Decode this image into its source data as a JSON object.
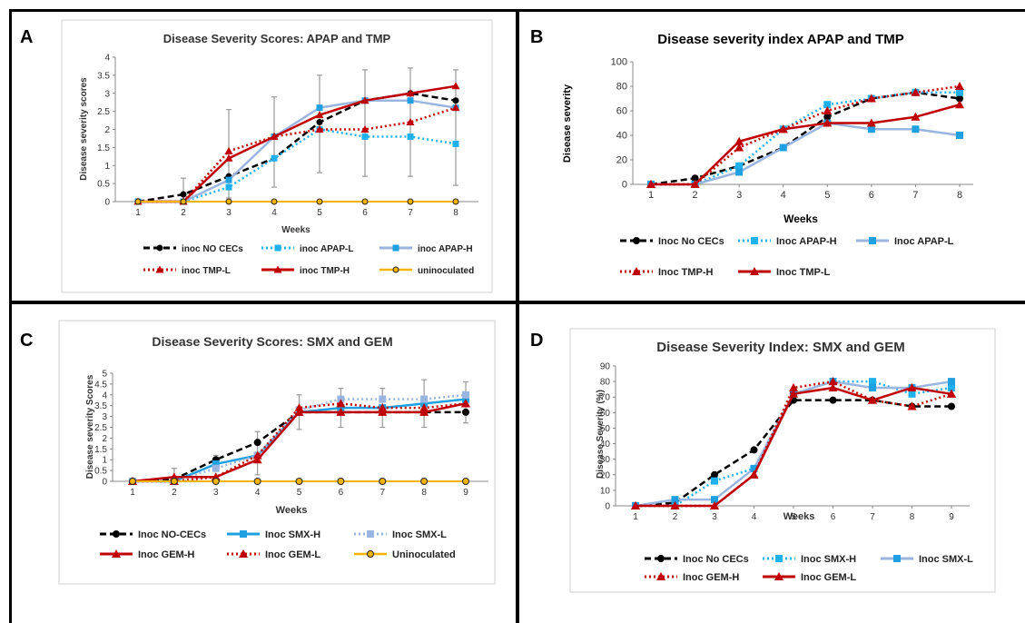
{
  "panel_labels": [
    "A",
    "B",
    "C",
    "D"
  ],
  "colors": {
    "black": "#000000",
    "blue_light_dotted": "#1fb1ee",
    "blue_pale": "#9ab6e0",
    "blue_solid": "#1fa0e0",
    "red_dark": "#c00000",
    "red_dotted": "#c00000",
    "yellow": "#f4b400"
  },
  "chart_data": [
    {
      "type": "line",
      "panel": "A",
      "title": "Disease Severity Scores: APAP and TMP",
      "xlabel": "Weeks",
      "ylabel": "Disease severity  scores",
      "x": [
        1,
        2,
        3,
        4,
        5,
        6,
        7,
        8
      ],
      "ylim": [
        0,
        4
      ],
      "yticks": [
        "0",
        "0.5",
        "1",
        "1.5",
        "2",
        "2.5",
        "3",
        "3.5",
        "4"
      ],
      "xticks": [
        "1",
        "2",
        "3",
        "4",
        "5",
        "6",
        "7",
        "8"
      ],
      "series": [
        {
          "name": "inoc NO CECs",
          "style": "black-dashed-circle",
          "values": [
            0,
            0.2,
            0.7,
            1.2,
            2.2,
            2.8,
            3.0,
            2.8
          ]
        },
        {
          "name": "inoc APAP-L",
          "style": "cyan-dotted-square",
          "values": [
            0,
            0,
            0.4,
            1.2,
            2.0,
            1.8,
            1.8,
            1.6
          ]
        },
        {
          "name": "inoc APAP-H",
          "style": "pale-solid-square",
          "values": [
            0,
            0,
            0.6,
            1.8,
            2.6,
            2.8,
            2.8,
            2.6
          ]
        },
        {
          "name": "inoc TMP-L",
          "style": "red-dotted-triangle",
          "values": [
            0,
            0,
            1.4,
            1.8,
            2.0,
            2.0,
            2.2,
            2.6
          ]
        },
        {
          "name": "inoc TMP-H",
          "style": "red-solid-triangle",
          "values": [
            0,
            0,
            1.2,
            1.8,
            2.4,
            2.8,
            3.0,
            3.2
          ]
        },
        {
          "name": "uninoculated",
          "style": "yellow-solid-circle",
          "values": [
            0,
            0,
            0,
            0,
            0,
            0,
            0,
            0
          ]
        }
      ],
      "error_bars": [
        {
          "x": 2,
          "low": 0,
          "high": 0.65
        },
        {
          "x": 3,
          "low": 0.1,
          "high": 2.55
        },
        {
          "x": 4,
          "low": 0.4,
          "high": 2.9
        },
        {
          "x": 5,
          "low": 0.8,
          "high": 3.5
        },
        {
          "x": 6,
          "low": 0.7,
          "high": 3.65
        },
        {
          "x": 7,
          "low": 0.7,
          "high": 3.7
        },
        {
          "x": 8,
          "low": 0.45,
          "high": 3.65
        }
      ],
      "legend_rows": [
        [
          "inoc NO CECs",
          "inoc APAP-L",
          "inoc APAP-H"
        ],
        [
          "inoc TMP-L",
          "inoc TMP-H",
          "uninoculated"
        ]
      ]
    },
    {
      "type": "line",
      "panel": "B",
      "title": "Disease severity index APAP and TMP",
      "xlabel": "Weeks",
      "ylabel": "Disease severity",
      "x": [
        1,
        2,
        3,
        4,
        5,
        6,
        7,
        8
      ],
      "ylim": [
        0,
        100
      ],
      "yticks": [
        "0",
        "20",
        "40",
        "60",
        "80",
        "100"
      ],
      "xticks": [
        "1",
        "2",
        "3",
        "4",
        "5",
        "6",
        "7",
        "8"
      ],
      "series": [
        {
          "name": "Inoc No CECs",
          "style": "black-dashed-circle",
          "values": [
            0,
            5,
            15,
            30,
            55,
            70,
            75,
            70
          ]
        },
        {
          "name": "Inoc APAP-H",
          "style": "cyan-dotted-square",
          "values": [
            0,
            0,
            15,
            45,
            65,
            70,
            75,
            75
          ]
        },
        {
          "name": "Inoc APAP-L",
          "style": "pale-solid-square",
          "values": [
            0,
            0,
            10,
            30,
            50,
            45,
            45,
            40
          ]
        },
        {
          "name": "Inoc TMP-H",
          "style": "red-dotted-triangle",
          "values": [
            0,
            0,
            30,
            45,
            60,
            70,
            75,
            80
          ]
        },
        {
          "name": "Inoc TMP-L",
          "style": "red-solid-triangle",
          "values": [
            0,
            0,
            35,
            45,
            50,
            50,
            55,
            65
          ]
        }
      ],
      "legend_rows": [
        [
          "Inoc No CECs",
          "Inoc APAP-H",
          "Inoc APAP-L"
        ],
        [
          "Inoc TMP-H",
          "Inoc TMP-L"
        ]
      ]
    },
    {
      "type": "line",
      "panel": "C",
      "title": "Disease Severity Scores: SMX and GEM",
      "xlabel": "Weeks",
      "ylabel": "Disease severity Scores",
      "x": [
        1,
        2,
        3,
        4,
        5,
        6,
        7,
        8,
        9
      ],
      "ylim": [
        0,
        5
      ],
      "yticks": [
        "0",
        "0.5",
        "1",
        "1.5",
        "2",
        "2.5",
        "3",
        "3.5",
        "4",
        "4.5",
        "5"
      ],
      "xticks": [
        "1",
        "2",
        "3",
        "4",
        "5",
        "6",
        "7",
        "8",
        "9"
      ],
      "series": [
        {
          "name": "Inoc NO-CECs",
          "style": "black-dashed-circle",
          "values": [
            0,
            0.1,
            1.0,
            1.8,
            3.2,
            3.2,
            3.2,
            3.2,
            3.2
          ]
        },
        {
          "name": "Inoc SMX-H",
          "style": "blue-solid-square",
          "values": [
            0,
            0,
            0.8,
            1.2,
            3.2,
            3.4,
            3.4,
            3.6,
            3.8
          ]
        },
        {
          "name": "Inoc SMX-L",
          "style": "pale-dotted-square",
          "values": [
            0,
            0,
            0.6,
            1.2,
            3.3,
            3.8,
            3.8,
            3.8,
            4.0
          ]
        },
        {
          "name": "Inoc GEM-H",
          "style": "red-solid-triangle",
          "values": [
            0,
            0.2,
            0.2,
            1.0,
            3.2,
            3.2,
            3.2,
            3.2,
            3.6
          ]
        },
        {
          "name": "Inoc GEM-L",
          "style": "red-dotted-triangle",
          "values": [
            0,
            0,
            0.2,
            1.2,
            3.4,
            3.6,
            3.4,
            3.4,
            3.6
          ]
        },
        {
          "name": "Uninoculated",
          "style": "yellow-solid-circle",
          "values": [
            0,
            0,
            0,
            0,
            0,
            0,
            0,
            0,
            0
          ]
        }
      ],
      "error_bars": [
        {
          "x": 2,
          "low": 0,
          "high": 0.6
        },
        {
          "x": 3,
          "low": 0.5,
          "high": 1.2
        },
        {
          "x": 4,
          "low": 0.3,
          "high": 2.3
        },
        {
          "x": 5,
          "low": 2.4,
          "high": 4.0
        },
        {
          "x": 6,
          "low": 2.5,
          "high": 4.3
        },
        {
          "x": 7,
          "low": 2.5,
          "high": 4.3
        },
        {
          "x": 8,
          "low": 2.5,
          "high": 4.7
        },
        {
          "x": 9,
          "low": 2.7,
          "high": 4.6
        }
      ],
      "legend_rows": [
        [
          "Inoc NO-CECs",
          "Inoc SMX-H",
          "Inoc SMX-L"
        ],
        [
          "Inoc GEM-H",
          "Inoc GEM-L",
          "Uninoculated"
        ]
      ]
    },
    {
      "type": "line",
      "panel": "D",
      "title": "Disease Severity Index: SMX and GEM",
      "xlabel": "Weeks",
      "ylabel": "Disease Severity (%)",
      "x": [
        1,
        2,
        3,
        4,
        5,
        6,
        7,
        8,
        9
      ],
      "ylim": [
        0,
        90
      ],
      "yticks": [
        "0",
        "10",
        "20",
        "30",
        "40",
        "50",
        "60",
        "70",
        "80",
        "90"
      ],
      "xticks": [
        "1",
        "2",
        "3",
        "4",
        "5",
        "6",
        "7",
        "8",
        "9"
      ],
      "series": [
        {
          "name": "Inoc No CECs",
          "style": "black-dashed-circle",
          "values": [
            0,
            2,
            20,
            36,
            68,
            68,
            68,
            64,
            64
          ]
        },
        {
          "name": "Inoc SMX-H",
          "style": "cyan-dotted-square",
          "values": [
            0,
            0,
            16,
            24,
            72,
            80,
            80,
            72,
            76
          ]
        },
        {
          "name": "Inoc SMX-L",
          "style": "pale-solid-square",
          "values": [
            0,
            4,
            4,
            24,
            72,
            80,
            76,
            76,
            80
          ]
        },
        {
          "name": "Inoc GEM-H",
          "style": "red-dotted-triangle",
          "values": [
            0,
            0,
            0,
            20,
            76,
            80,
            68,
            64,
            72
          ]
        },
        {
          "name": "Inoc GEM-L",
          "style": "red-solid-triangle",
          "values": [
            0,
            0,
            0,
            20,
            72,
            76,
            68,
            76,
            72
          ]
        }
      ],
      "legend_rows": [
        [
          "Inoc No CECs",
          "Inoc SMX-H",
          "Inoc SMX-L"
        ],
        [
          "Inoc GEM-H",
          "Inoc GEM-L"
        ]
      ]
    }
  ]
}
